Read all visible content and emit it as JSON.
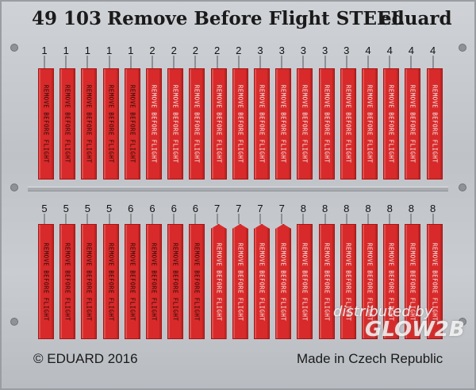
{
  "fret": {
    "product_number": "49 103",
    "product_name": "Remove Before Flight STEEL",
    "brand": "eduard",
    "copyright": "© EDUARD 2016",
    "origin": "Made in Czech Republic",
    "tag_label": "REMOVE   BEFORE   FLIGHT",
    "colors": {
      "tag": "#d82a2a",
      "metal": "#c4c7cb"
    }
  },
  "top_row": [
    {
      "number": "1"
    },
    {
      "number": "1"
    },
    {
      "number": "1"
    },
    {
      "number": "1"
    },
    {
      "number": "1"
    },
    {
      "number": "2"
    },
    {
      "number": "2"
    },
    {
      "number": "2"
    },
    {
      "number": "2"
    },
    {
      "number": "2"
    },
    {
      "number": "3"
    },
    {
      "number": "3"
    },
    {
      "number": "3"
    },
    {
      "number": "3"
    },
    {
      "number": "3"
    },
    {
      "number": "4"
    },
    {
      "number": "4"
    },
    {
      "number": "4"
    },
    {
      "number": "4"
    }
  ],
  "bottom_row": [
    {
      "number": "5"
    },
    {
      "number": "5"
    },
    {
      "number": "5"
    },
    {
      "number": "5"
    },
    {
      "number": "6"
    },
    {
      "number": "6"
    },
    {
      "number": "6"
    },
    {
      "number": "6"
    },
    {
      "number": "7"
    },
    {
      "number": "7"
    },
    {
      "number": "7"
    },
    {
      "number": "7"
    },
    {
      "number": "8"
    },
    {
      "number": "8"
    },
    {
      "number": "8"
    },
    {
      "number": "8"
    },
    {
      "number": "8"
    },
    {
      "number": "8"
    },
    {
      "number": "8"
    }
  ],
  "watermark": {
    "line1": "distributed by",
    "line2": "GLOW2B"
  }
}
